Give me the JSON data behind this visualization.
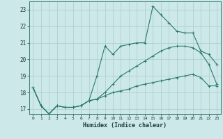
{
  "xlabel": "Humidex (Indice chaleur)",
  "bg_color": "#cce8e8",
  "grid_color": "#aacccc",
  "line_color": "#2a7a6a",
  "xlim": [
    -0.5,
    23.5
  ],
  "ylim": [
    16.7,
    23.5
  ],
  "xticks": [
    0,
    1,
    2,
    3,
    4,
    5,
    6,
    7,
    8,
    9,
    10,
    11,
    12,
    13,
    14,
    15,
    16,
    17,
    18,
    19,
    20,
    21,
    22,
    23
  ],
  "yticks": [
    17,
    18,
    19,
    20,
    21,
    22,
    23
  ],
  "line1_x": [
    0,
    1,
    2,
    3,
    4,
    5,
    6,
    7,
    8,
    9,
    10,
    11,
    12,
    13,
    14,
    15,
    16,
    17,
    18,
    19,
    20,
    21,
    22,
    23
  ],
  "line1_y": [
    18.3,
    17.2,
    16.7,
    17.2,
    17.1,
    17.1,
    17.2,
    17.5,
    19.0,
    20.8,
    20.3,
    20.8,
    20.9,
    21.0,
    21.0,
    23.2,
    22.7,
    22.2,
    21.7,
    21.6,
    21.6,
    20.5,
    20.3,
    19.7
  ],
  "line2_x": [
    0,
    1,
    2,
    3,
    4,
    5,
    6,
    7,
    8,
    9,
    10,
    11,
    12,
    13,
    14,
    15,
    16,
    17,
    18,
    19,
    20,
    21,
    22,
    23
  ],
  "line2_y": [
    18.3,
    17.2,
    16.7,
    17.2,
    17.1,
    17.1,
    17.2,
    17.5,
    17.6,
    18.0,
    18.5,
    19.0,
    19.3,
    19.6,
    19.9,
    20.2,
    20.5,
    20.7,
    20.8,
    20.8,
    20.7,
    20.4,
    19.7,
    18.5
  ],
  "line3_x": [
    0,
    1,
    2,
    3,
    4,
    5,
    6,
    7,
    8,
    9,
    10,
    11,
    12,
    13,
    14,
    15,
    16,
    17,
    18,
    19,
    20,
    21,
    22,
    23
  ],
  "line3_y": [
    18.3,
    17.2,
    16.7,
    17.2,
    17.1,
    17.1,
    17.2,
    17.5,
    17.6,
    17.8,
    18.0,
    18.1,
    18.2,
    18.4,
    18.5,
    18.6,
    18.7,
    18.8,
    18.9,
    19.0,
    19.1,
    18.9,
    18.4,
    18.4
  ]
}
